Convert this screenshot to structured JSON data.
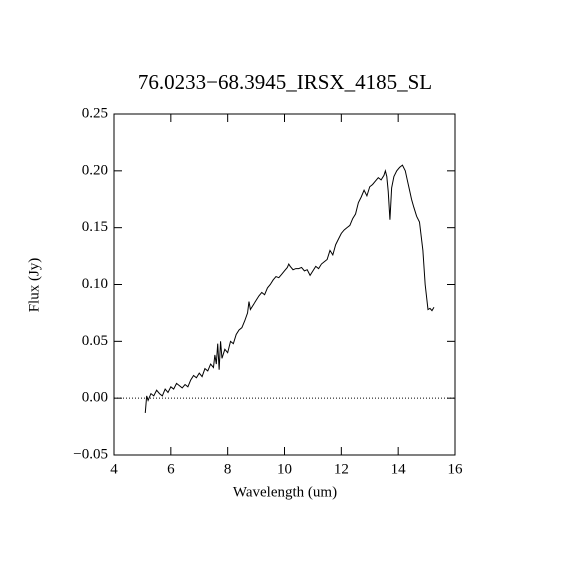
{
  "chart_data": {
    "type": "line",
    "title": "76.0233−68.3945_IRSX_4185_SL",
    "xlabel": "Wavelength (um)",
    "ylabel": "Flux (Jy)",
    "color": "#000000",
    "reference_line": 0,
    "x": [
      5.1,
      5.15,
      5.2,
      5.3,
      5.4,
      5.5,
      5.6,
      5.7,
      5.8,
      5.9,
      6.0,
      6.1,
      6.2,
      6.3,
      6.4,
      6.5,
      6.6,
      6.7,
      6.8,
      6.9,
      7.0,
      7.1,
      7.2,
      7.3,
      7.4,
      7.5,
      7.55,
      7.6,
      7.65,
      7.7,
      7.75,
      7.8,
      7.9,
      8.0,
      8.1,
      8.2,
      8.3,
      8.4,
      8.5,
      8.6,
      8.7,
      8.75,
      8.8,
      8.9,
      9.0,
      9.1,
      9.2,
      9.3,
      9.4,
      9.5,
      9.6,
      9.7,
      9.8,
      9.9,
      10.0,
      10.1,
      10.15,
      10.2,
      10.3,
      10.4,
      10.5,
      10.6,
      10.7,
      10.8,
      10.9,
      11.0,
      11.1,
      11.2,
      11.3,
      11.4,
      11.5,
      11.6,
      11.7,
      11.8,
      11.9,
      12.0,
      12.1,
      12.2,
      12.3,
      12.4,
      12.5,
      12.6,
      12.7,
      12.8,
      12.9,
      13.0,
      13.1,
      13.2,
      13.3,
      13.4,
      13.5,
      13.55,
      13.6,
      13.65,
      13.71,
      13.77,
      13.85,
      13.95,
      14.05,
      14.15,
      14.25,
      14.32,
      14.4,
      14.47,
      14.55,
      14.65,
      14.75,
      14.87,
      14.95,
      15.05,
      15.12,
      15.19,
      15.26
    ],
    "values": [
      -0.013,
      0.002,
      -0.002,
      0.004,
      0.002,
      0.007,
      0.004,
      0.002,
      0.008,
      0.005,
      0.01,
      0.008,
      0.013,
      0.011,
      0.009,
      0.012,
      0.01,
      0.016,
      0.02,
      0.018,
      0.022,
      0.019,
      0.026,
      0.024,
      0.03,
      0.027,
      0.038,
      0.03,
      0.048,
      0.025,
      0.05,
      0.035,
      0.043,
      0.04,
      0.05,
      0.048,
      0.056,
      0.06,
      0.062,
      0.068,
      0.075,
      0.085,
      0.078,
      0.082,
      0.086,
      0.09,
      0.093,
      0.091,
      0.097,
      0.1,
      0.104,
      0.107,
      0.106,
      0.109,
      0.112,
      0.115,
      0.118,
      0.116,
      0.113,
      0.114,
      0.114,
      0.115,
      0.112,
      0.113,
      0.108,
      0.112,
      0.116,
      0.114,
      0.118,
      0.12,
      0.122,
      0.13,
      0.126,
      0.135,
      0.14,
      0.145,
      0.148,
      0.15,
      0.152,
      0.158,
      0.162,
      0.172,
      0.177,
      0.183,
      0.178,
      0.186,
      0.188,
      0.191,
      0.194,
      0.192,
      0.196,
      0.2,
      0.195,
      0.182,
      0.157,
      0.185,
      0.195,
      0.2,
      0.203,
      0.205,
      0.2,
      0.192,
      0.183,
      0.175,
      0.168,
      0.16,
      0.155,
      0.13,
      0.1,
      0.078,
      0.079,
      0.077,
      0.08
    ],
    "xlim": [
      4,
      16
    ],
    "xticks": [
      4,
      6,
      8,
      10,
      12,
      14,
      16
    ],
    "ylim": [
      -0.05,
      0.25
    ],
    "yticks": [
      {
        "value": -0.05,
        "label": "−0.05"
      },
      {
        "value": 0,
        "label": "0.00"
      },
      {
        "value": 0.05,
        "label": "0.05"
      },
      {
        "value": 0.1,
        "label": "0.10"
      },
      {
        "value": 0.15,
        "label": "0.15"
      },
      {
        "value": 0.2,
        "label": "0.20"
      },
      {
        "value": 0.25,
        "label": "0.25"
      }
    ]
  }
}
